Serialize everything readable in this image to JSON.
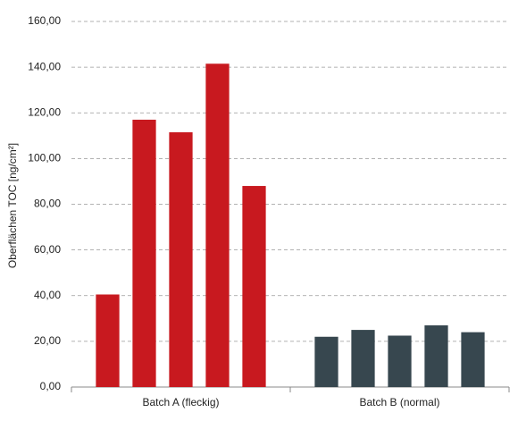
{
  "chart_data": {
    "type": "grouped-bar",
    "y_label": "Oberflächen TOC [ng/cm²]",
    "categories": [
      "Batch A (fleckig)",
      "Batch B (normal)"
    ],
    "groups": [
      {
        "color": "#c8191f",
        "values": [
          40.5,
          117,
          111.5,
          141.5,
          88
        ]
      },
      {
        "color": "#37474f",
        "values": [
          22,
          25,
          22.5,
          27,
          24
        ]
      }
    ],
    "ylim": [
      0,
      160
    ],
    "yticks": [
      {
        "value": 0,
        "label": "0,00"
      },
      {
        "value": 20,
        "label": "20,00"
      },
      {
        "value": 40,
        "label": "40,00"
      },
      {
        "value": 60,
        "label": "60,00"
      },
      {
        "value": 80,
        "label": "80,00"
      },
      {
        "value": 100,
        "label": "100,00"
      },
      {
        "value": 120,
        "label": "120,00"
      },
      {
        "value": 140,
        "label": "140,00"
      },
      {
        "value": 160,
        "label": "160,00"
      }
    ],
    "grid": true
  }
}
